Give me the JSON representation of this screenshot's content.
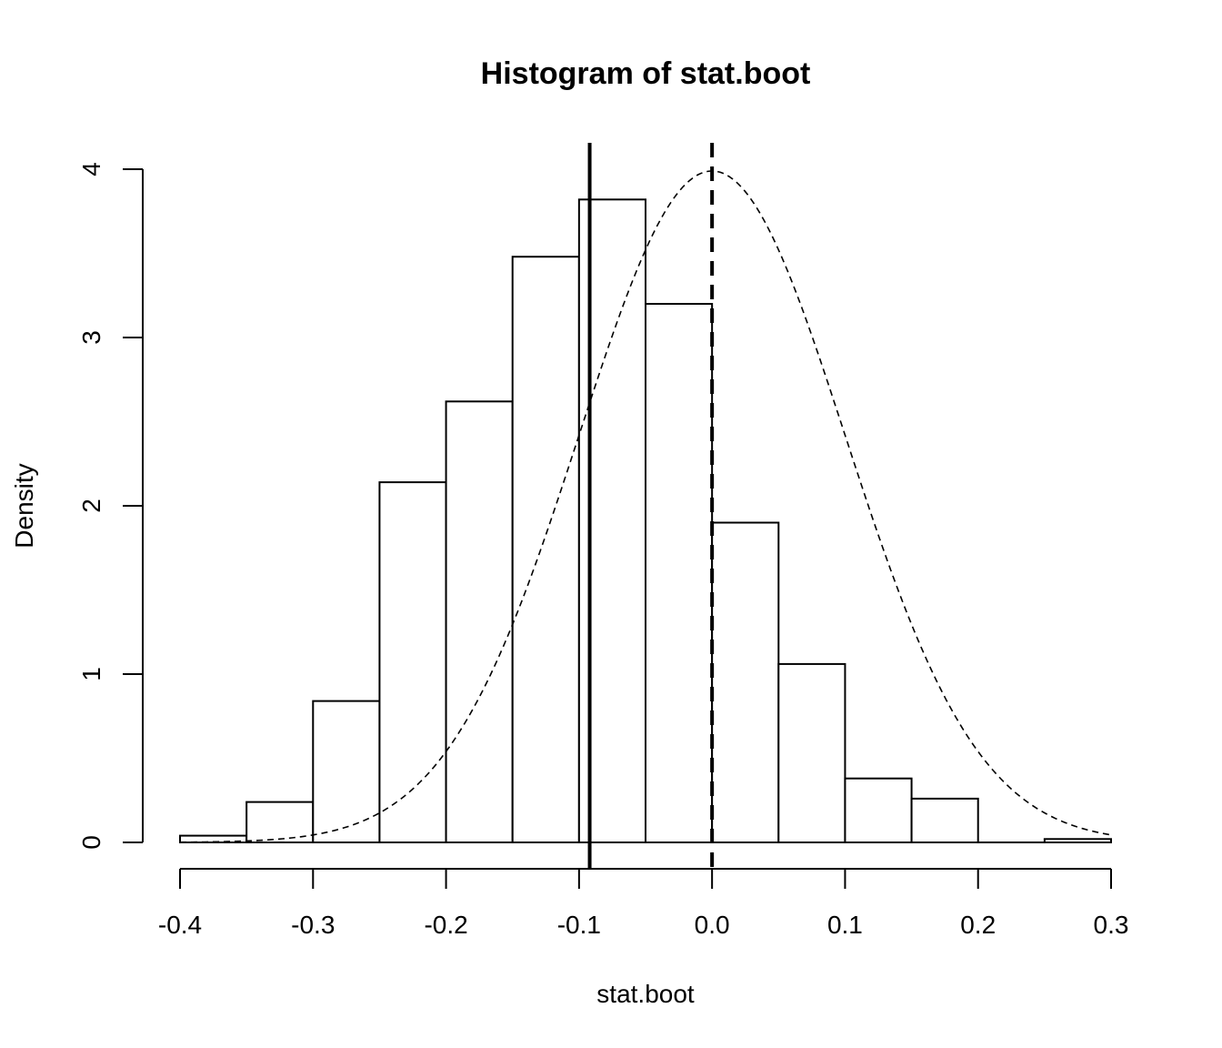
{
  "chart_data": {
    "type": "bar",
    "title": "Histogram of stat.boot",
    "xlabel": "stat.boot",
    "ylabel": "Density",
    "xlim": [
      -0.4,
      0.3
    ],
    "ylim": [
      0,
      4
    ],
    "x_ticks": [
      "-0.4",
      "-0.3",
      "-0.2",
      "-0.1",
      "0.0",
      "0.1",
      "0.2",
      "0.3"
    ],
    "y_ticks": [
      "0",
      "1",
      "2",
      "3",
      "4"
    ],
    "bin_edges": [
      -0.4,
      -0.35,
      -0.3,
      -0.25,
      -0.2,
      -0.15,
      -0.1,
      -0.05,
      0.0,
      0.05,
      0.1,
      0.15,
      0.2,
      0.25,
      0.3
    ],
    "density": [
      0.04,
      0.24,
      0.84,
      2.14,
      2.62,
      3.48,
      3.82,
      3.2,
      1.9,
      1.06,
      0.38,
      0.26,
      0.0,
      0.02
    ],
    "normal_curve": {
      "mean": 0.0,
      "sd": 0.1,
      "style": "dashed"
    },
    "vlines": [
      {
        "x": -0.092,
        "style": "solid"
      },
      {
        "x": 0.0,
        "style": "dashed"
      }
    ],
    "grid": false,
    "legend": "none"
  }
}
